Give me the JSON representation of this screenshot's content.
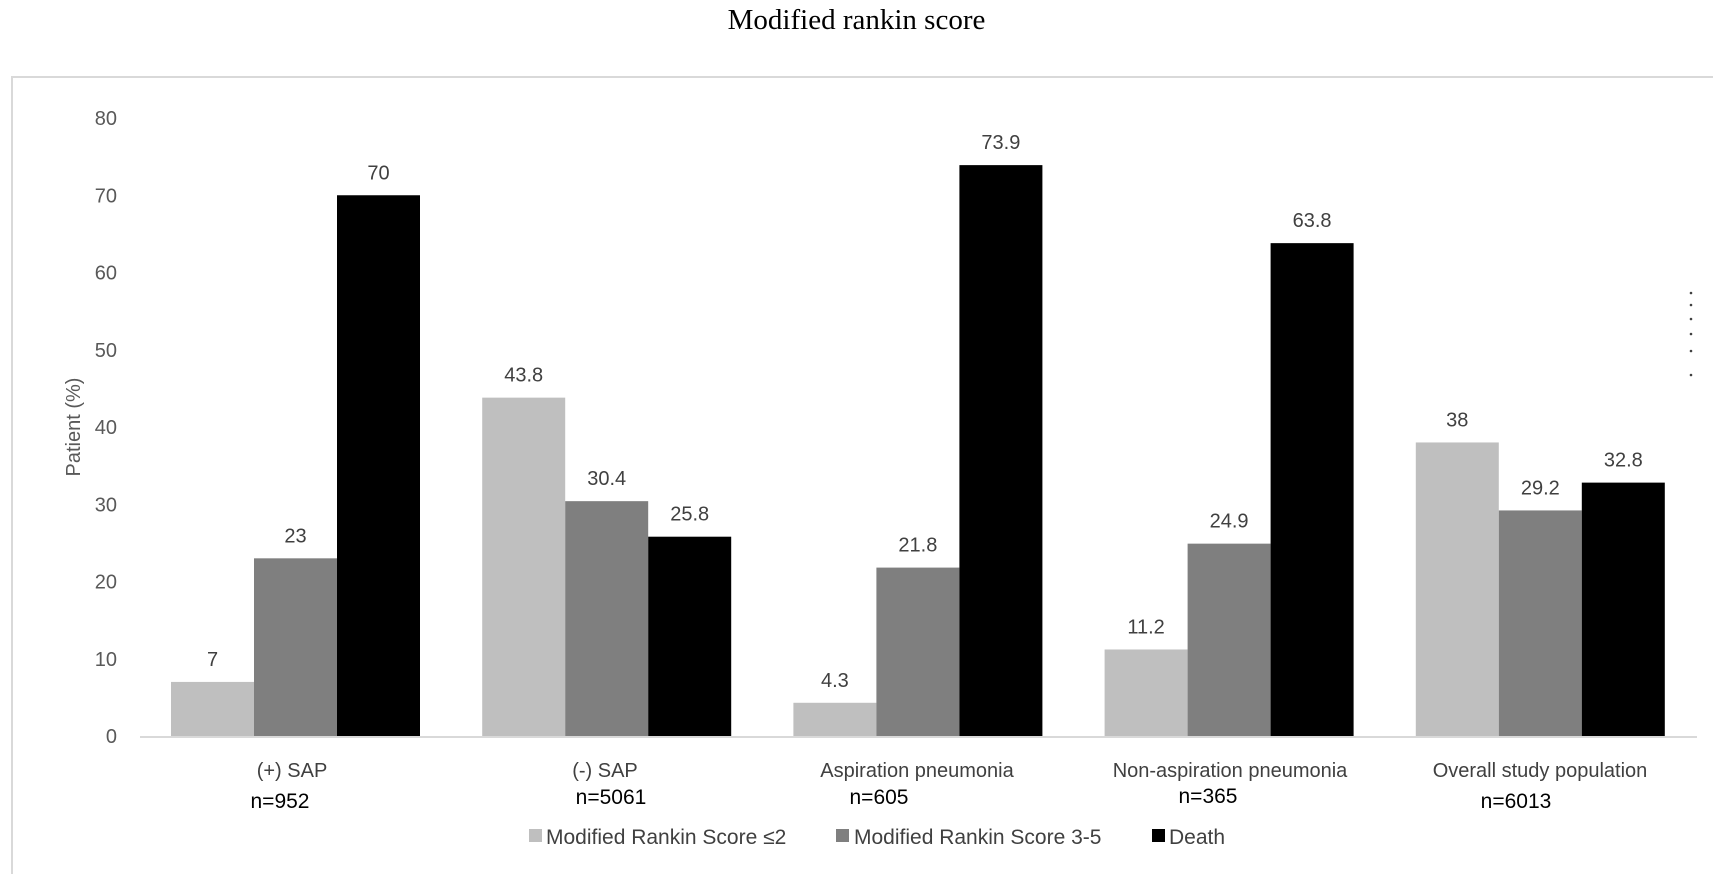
{
  "chart_data": {
    "type": "bar",
    "title": "Modified rankin score",
    "ylabel": "Patient (%)",
    "xlabel": "",
    "ylim": [
      0,
      80
    ],
    "yticks": [
      0,
      10,
      20,
      30,
      40,
      50,
      60,
      70,
      80
    ],
    "grid": false,
    "legend_position": "bottom",
    "categories": [
      "(+) SAP",
      "(-) SAP",
      "Aspiration pneumonia",
      "Non-aspiration pneumonia",
      "Overall study population"
    ],
    "category_n": [
      "n=952",
      "n=5061",
      "n=605",
      "n=365",
      "n=6013"
    ],
    "series": [
      {
        "name": "Modified Rankin Score ≤2",
        "color": "#bfbfbf",
        "values": [
          7,
          43.8,
          4.3,
          11.2,
          38
        ],
        "labels": [
          "7",
          "43.8",
          "4.3",
          "11.2",
          "38"
        ]
      },
      {
        "name": "Modified Rankin Score 3-5",
        "color": "#7f7f7f",
        "values": [
          23,
          30.4,
          21.8,
          24.9,
          29.2
        ],
        "labels": [
          "23",
          "30.4",
          "21.8",
          "24.9",
          "29.2"
        ]
      },
      {
        "name": "Death",
        "color": "#000000",
        "values": [
          70,
          25.8,
          73.9,
          63.8,
          32.8
        ],
        "labels": [
          "70",
          "25.8",
          "73.9",
          "63.8",
          "32.8"
        ]
      }
    ]
  }
}
